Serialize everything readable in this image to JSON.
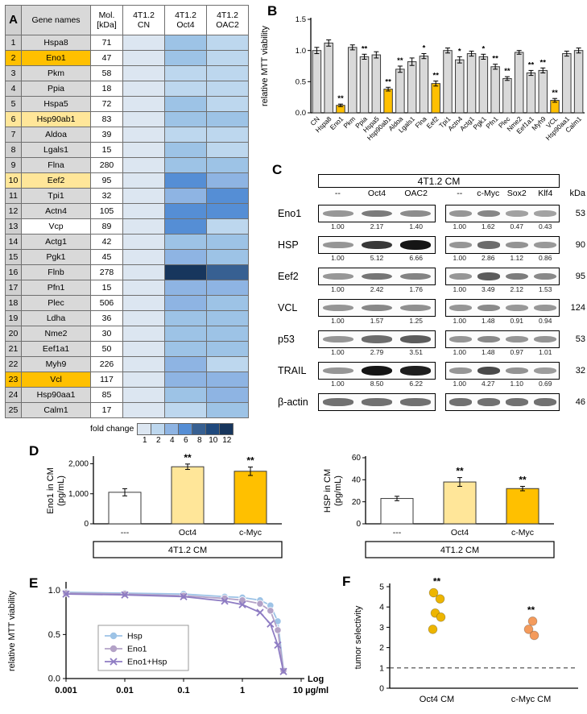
{
  "figure": {
    "labels": {
      "A": "A",
      "B": "B",
      "C": "C",
      "D": "D",
      "E": "E",
      "F": "F"
    }
  },
  "chart_data": [
    {
      "id": "A",
      "type": "heatmap",
      "columns": {
        "row_num": "",
        "gene": "Gene names",
        "mol": "Mol.\n[kDa]",
        "conditions": [
          "4T1.2\nCN",
          "4T1.2\nOct4",
          "4T1.2\nOAC2"
        ]
      },
      "legend": {
        "label": "fold change",
        "ticks": [
          1,
          2,
          4,
          6,
          8,
          10,
          12
        ]
      },
      "palette": {
        "1": "#dce6f1",
        "2": "#bdd7ee",
        "3": "#9dc3e6",
        "4": "#8eb4e3",
        "6": "#558ed5",
        "8": "#376092",
        "10": "#1f497d",
        "12": "#17365d"
      },
      "row_highlight_colors": {
        "strong": "#FFC000",
        "light": "#FFE699",
        "plain": "#d9d9d9",
        "white": "#ffffff"
      },
      "rows": [
        {
          "n": 1,
          "gene": "Hspa8",
          "mol": 71,
          "fold": [
            1,
            3,
            2
          ],
          "hl": "plain"
        },
        {
          "n": 2,
          "gene": "Eno1",
          "mol": 47,
          "fold": [
            1,
            3,
            2
          ],
          "hl": "strong"
        },
        {
          "n": 3,
          "gene": "Pkm",
          "mol": 58,
          "fold": [
            1,
            2,
            2
          ],
          "hl": "plain"
        },
        {
          "n": 4,
          "gene": "Ppia",
          "mol": 18,
          "fold": [
            1,
            2,
            2
          ],
          "hl": "plain"
        },
        {
          "n": 5,
          "gene": "Hspa5",
          "mol": 72,
          "fold": [
            1,
            3,
            2
          ],
          "hl": "plain"
        },
        {
          "n": 6,
          "gene": "Hsp90ab1",
          "mol": 83,
          "fold": [
            1,
            3,
            3
          ],
          "hl": "light"
        },
        {
          "n": 7,
          "gene": "Aldoa",
          "mol": 39,
          "fold": [
            1,
            2,
            2
          ],
          "hl": "plain"
        },
        {
          "n": 8,
          "gene": "Lgals1",
          "mol": 15,
          "fold": [
            1,
            3,
            2
          ],
          "hl": "plain"
        },
        {
          "n": 9,
          "gene": "Flna",
          "mol": 280,
          "fold": [
            1,
            3,
            3
          ],
          "hl": "plain"
        },
        {
          "n": 10,
          "gene": "Eef2",
          "mol": 95,
          "fold": [
            1,
            6,
            4
          ],
          "hl": "light"
        },
        {
          "n": 11,
          "gene": "Tpi1",
          "mol": 32,
          "fold": [
            1,
            4,
            6
          ],
          "hl": "plain"
        },
        {
          "n": 12,
          "gene": "Actn4",
          "mol": 105,
          "fold": [
            1,
            6,
            6
          ],
          "hl": "plain"
        },
        {
          "n": 13,
          "gene": "Vcp",
          "mol": 89,
          "fold": [
            1,
            6,
            2
          ],
          "hl": "white"
        },
        {
          "n": 14,
          "gene": "Actg1",
          "mol": 42,
          "fold": [
            1,
            3,
            3
          ],
          "hl": "plain"
        },
        {
          "n": 15,
          "gene": "Pgk1",
          "mol": 45,
          "fold": [
            1,
            4,
            3
          ],
          "hl": "plain"
        },
        {
          "n": 16,
          "gene": "Flnb",
          "mol": 278,
          "fold": [
            1,
            12,
            8
          ],
          "hl": "plain"
        },
        {
          "n": 17,
          "gene": "Pfn1",
          "mol": 15,
          "fold": [
            1,
            4,
            4
          ],
          "hl": "plain"
        },
        {
          "n": 18,
          "gene": "Plec",
          "mol": 506,
          "fold": [
            1,
            4,
            3
          ],
          "hl": "plain"
        },
        {
          "n": 19,
          "gene": "Ldha",
          "mol": 36,
          "fold": [
            1,
            3,
            3
          ],
          "hl": "plain"
        },
        {
          "n": 20,
          "gene": "Nme2",
          "mol": 30,
          "fold": [
            1,
            3,
            3
          ],
          "hl": "plain"
        },
        {
          "n": 21,
          "gene": "Eef1a1",
          "mol": 50,
          "fold": [
            1,
            3,
            3
          ],
          "hl": "plain"
        },
        {
          "n": 22,
          "gene": "Myh9",
          "mol": 226,
          "fold": [
            1,
            4,
            2
          ],
          "hl": "plain"
        },
        {
          "n": 23,
          "gene": "Vcl",
          "mol": 117,
          "fold": [
            1,
            4,
            4
          ],
          "hl": "strong"
        },
        {
          "n": 24,
          "gene": "Hsp90aa1",
          "mol": 85,
          "fold": [
            1,
            3,
            4
          ],
          "hl": "plain"
        },
        {
          "n": 25,
          "gene": "Calm1",
          "mol": 17,
          "fold": [
            1,
            2,
            3
          ],
          "hl": "plain"
        }
      ]
    },
    {
      "id": "B",
      "type": "bar",
      "ylabel": "relative MTT viability",
      "ylim": [
        0,
        1.5
      ],
      "yticks": [
        0,
        0.5,
        1,
        1.5
      ],
      "ytick_labels": [
        "0.0",
        "0.5",
        "1.0",
        "1.5"
      ],
      "categories": [
        "CN",
        "Hspa8",
        "Eno1",
        "Pkm",
        "Ppia",
        "Hspa5",
        "Hsp90ab1",
        "Aldoa",
        "Lgals1",
        "Flna",
        "Eef2",
        "Tpi1",
        "Actn4",
        "Actg1",
        "Pgk1",
        "Pfn1",
        "Plec",
        "Nme2",
        "Eef1a1",
        "Myh9",
        "VCL",
        "Hsp90aa1",
        "Calm1"
      ],
      "values": [
        1.0,
        1.12,
        0.12,
        1.05,
        0.9,
        0.93,
        0.38,
        0.7,
        0.82,
        0.91,
        0.47,
        1.0,
        0.85,
        0.95,
        0.9,
        0.74,
        0.55,
        0.97,
        0.64,
        0.68,
        0.2,
        0.95,
        1.0
      ],
      "errors": [
        0.05,
        0.05,
        0.02,
        0.04,
        0.04,
        0.05,
        0.03,
        0.05,
        0.06,
        0.04,
        0.04,
        0.04,
        0.05,
        0.04,
        0.04,
        0.04,
        0.03,
        0.03,
        0.04,
        0.04,
        0.03,
        0.04,
        0.04
      ],
      "sig": [
        "",
        "",
        "**",
        "",
        "**",
        "",
        "**",
        "**",
        "",
        "*",
        "**",
        "",
        "*",
        "",
        "*",
        "**",
        "**",
        "",
        "**",
        "**",
        "**",
        "",
        ""
      ],
      "default_color": "#D9D9D9",
      "highlight": {
        "Eno1": "#FFC000",
        "Hsp90ab1": "#FFC000",
        "Eef2": "#FFC000",
        "VCL": "#FFC000"
      }
    },
    {
      "id": "D1",
      "type": "bar",
      "ylabel": "Eno1 in CM\n(pg/mL)",
      "ylim": [
        0,
        2200
      ],
      "yticks": [
        0,
        1000,
        2000
      ],
      "ytick_labels": [
        "0",
        "1,000",
        "2,000"
      ],
      "categories": [
        "---",
        "Oct4",
        "c-Myc"
      ],
      "values": [
        1050,
        1900,
        1750
      ],
      "errors": [
        120,
        90,
        140
      ],
      "sig": [
        "",
        "**",
        "**"
      ],
      "colors": [
        "#FFFFFF",
        "#FFE699",
        "#FFC000"
      ],
      "group_label": "4T1.2 CM"
    },
    {
      "id": "D2",
      "type": "bar",
      "ylabel": "HSP in CM\n(pg/mL)",
      "ylim": [
        0,
        60
      ],
      "yticks": [
        0,
        20,
        40,
        60
      ],
      "ytick_labels": [
        "0",
        "20",
        "40",
        "60"
      ],
      "categories": [
        "---",
        "Oct4",
        "c-Myc"
      ],
      "values": [
        23,
        38,
        32
      ],
      "errors": [
        2,
        4,
        2
      ],
      "sig": [
        "",
        "**",
        "**"
      ],
      "colors": [
        "#FFFFFF",
        "#FFE699",
        "#FFC000"
      ],
      "group_label": "4T1.2 CM"
    },
    {
      "id": "E",
      "type": "line",
      "ylabel": "relative MTT viability",
      "ylim": [
        0,
        1.08
      ],
      "yticks": [
        0,
        0.5,
        1
      ],
      "ytick_labels": [
        "0.0",
        "0.5",
        "1.0"
      ],
      "xscale": "log",
      "xlim": [
        0.001,
        10
      ],
      "xticks": [
        0.001,
        0.01,
        0.1,
        1,
        10
      ],
      "xtick_labels": [
        "0.001",
        "0.01",
        "0.1",
        "1",
        "10 µg/ml"
      ],
      "x_axis_note": "Log",
      "x": [
        0.001,
        0.01,
        0.1,
        0.5,
        1,
        2,
        3,
        4,
        5
      ],
      "series": [
        {
          "name": "Hsp",
          "marker": "circle",
          "color": "#9DC3E6",
          "values": [
            0.98,
            0.97,
            0.96,
            0.93,
            0.92,
            0.89,
            0.83,
            0.65,
            0.1
          ]
        },
        {
          "name": "Eno1",
          "marker": "circle",
          "color": "#B3A2C7",
          "values": [
            0.97,
            0.96,
            0.94,
            0.91,
            0.89,
            0.85,
            0.77,
            0.55,
            0.09
          ]
        },
        {
          "name": "Eno1+Hsp",
          "marker": "x",
          "color": "#8E7CC3",
          "values": [
            0.96,
            0.95,
            0.93,
            0.88,
            0.84,
            0.75,
            0.62,
            0.38,
            0.08
          ]
        }
      ]
    },
    {
      "id": "F",
      "type": "scatter",
      "ylabel": "tumor selectivity",
      "ylim": [
        0,
        5
      ],
      "yticks": [
        0,
        1,
        2,
        3,
        4,
        5
      ],
      "ytick_labels": [
        "0",
        "1",
        "2",
        "3",
        "4",
        "5"
      ],
      "reference_line": 1,
      "series": [
        {
          "name": "Oct4 CM",
          "color": "#EDB500",
          "values": [
            4.7,
            4.4,
            3.7,
            3.5,
            2.9
          ],
          "sig": "**"
        },
        {
          "name": "c-Myc CM",
          "color": "#F49B5C",
          "values": [
            3.3,
            2.9,
            2.6
          ],
          "sig": "**"
        }
      ]
    }
  ],
  "blots": {
    "panel_title": "4T1.2 CM",
    "kda_header": "kDa",
    "left_lanes": [
      "--",
      "Oct4",
      "OAC2"
    ],
    "right_lanes": [
      "--",
      "c-Myc",
      "Sox2",
      "Klf4"
    ],
    "rows": [
      {
        "name": "Eno1",
        "kda": 53,
        "left": [
          1.0,
          2.17,
          1.4
        ],
        "right": [
          1.0,
          1.62,
          0.47,
          0.43
        ]
      },
      {
        "name": "HSP",
        "kda": 90,
        "left": [
          1.0,
          5.12,
          6.66
        ],
        "right": [
          1.0,
          2.86,
          1.12,
          0.86
        ]
      },
      {
        "name": "Eef2",
        "kda": 95,
        "left": [
          1.0,
          2.42,
          1.76
        ],
        "right": [
          1.0,
          3.49,
          2.12,
          1.53
        ]
      },
      {
        "name": "VCL",
        "kda": 124,
        "left": [
          1.0,
          1.57,
          1.25
        ],
        "right": [
          1.0,
          1.48,
          0.91,
          0.94
        ]
      },
      {
        "name": "p53",
        "kda": 53,
        "left": [
          1.0,
          2.79,
          3.51
        ],
        "right": [
          1.0,
          1.48,
          0.97,
          1.01
        ]
      },
      {
        "name": "TRAIL",
        "kda": 32,
        "left": [
          1.0,
          8.5,
          6.22
        ],
        "right": [
          1.0,
          4.27,
          1.1,
          0.69
        ]
      },
      {
        "name": "β-actin",
        "kda": 46,
        "left": null,
        "right": null
      }
    ]
  }
}
